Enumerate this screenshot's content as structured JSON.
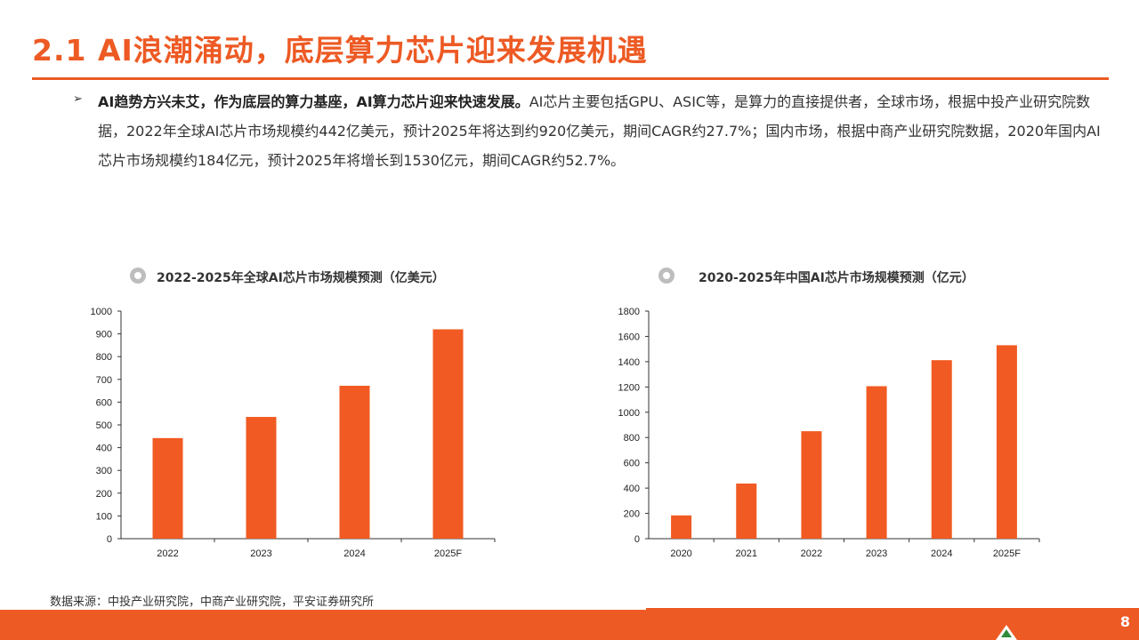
{
  "page": {
    "title": "2.1 AI浪潮涌动，底层算力芯片迎来发展机遇",
    "bullet_symbol": "➢",
    "paragraph_lead": "AI趋势方兴未艾，作为底层的算力基座，AI算力芯片迎来快速发展。",
    "paragraph_body": "AI芯片主要包括GPU、ASIC等，是算力的直接提供者，全球市场，根据中投产业研究院数据，2022年全球AI芯片市场规模约442亿美元，预计2025年将达到约920亿美元，期间CAGR约27.7%；国内市场，根据中商产业研究院数据，2020年国内AI芯片市场规模约184亿元，预计2025年将增长到1530亿元，期间CAGR约52.7%。",
    "source": "数据来源：中投产业研究院，中商产业研究院，平安证券研究所",
    "page_number": "8"
  },
  "colors": {
    "accent": "#ED5A24",
    "bar": "#F15A22",
    "axis": "#333333"
  },
  "chart_data": [
    {
      "type": "bar",
      "title": "2022-2025年全球AI芯片市场规模预测（亿美元）",
      "categories": [
        "2022",
        "2023",
        "2024",
        "2025F"
      ],
      "values": [
        442,
        535,
        672,
        920
      ],
      "ylim": [
        0,
        1000
      ],
      "yticks": [
        0,
        100,
        200,
        300,
        400,
        500,
        600,
        700,
        800,
        900,
        1000
      ],
      "xlabel": "",
      "ylabel": ""
    },
    {
      "type": "bar",
      "title": "2020-2025年中国AI芯片市场规模预测（亿元）",
      "categories": [
        "2020",
        "2021",
        "2022",
        "2023",
        "2024",
        "2025F"
      ],
      "values": [
        184,
        436,
        850,
        1206,
        1412,
        1530
      ],
      "ylim": [
        0,
        1800
      ],
      "yticks": [
        0,
        200,
        400,
        600,
        800,
        1000,
        1200,
        1400,
        1600,
        1800
      ],
      "xlabel": "",
      "ylabel": ""
    }
  ]
}
